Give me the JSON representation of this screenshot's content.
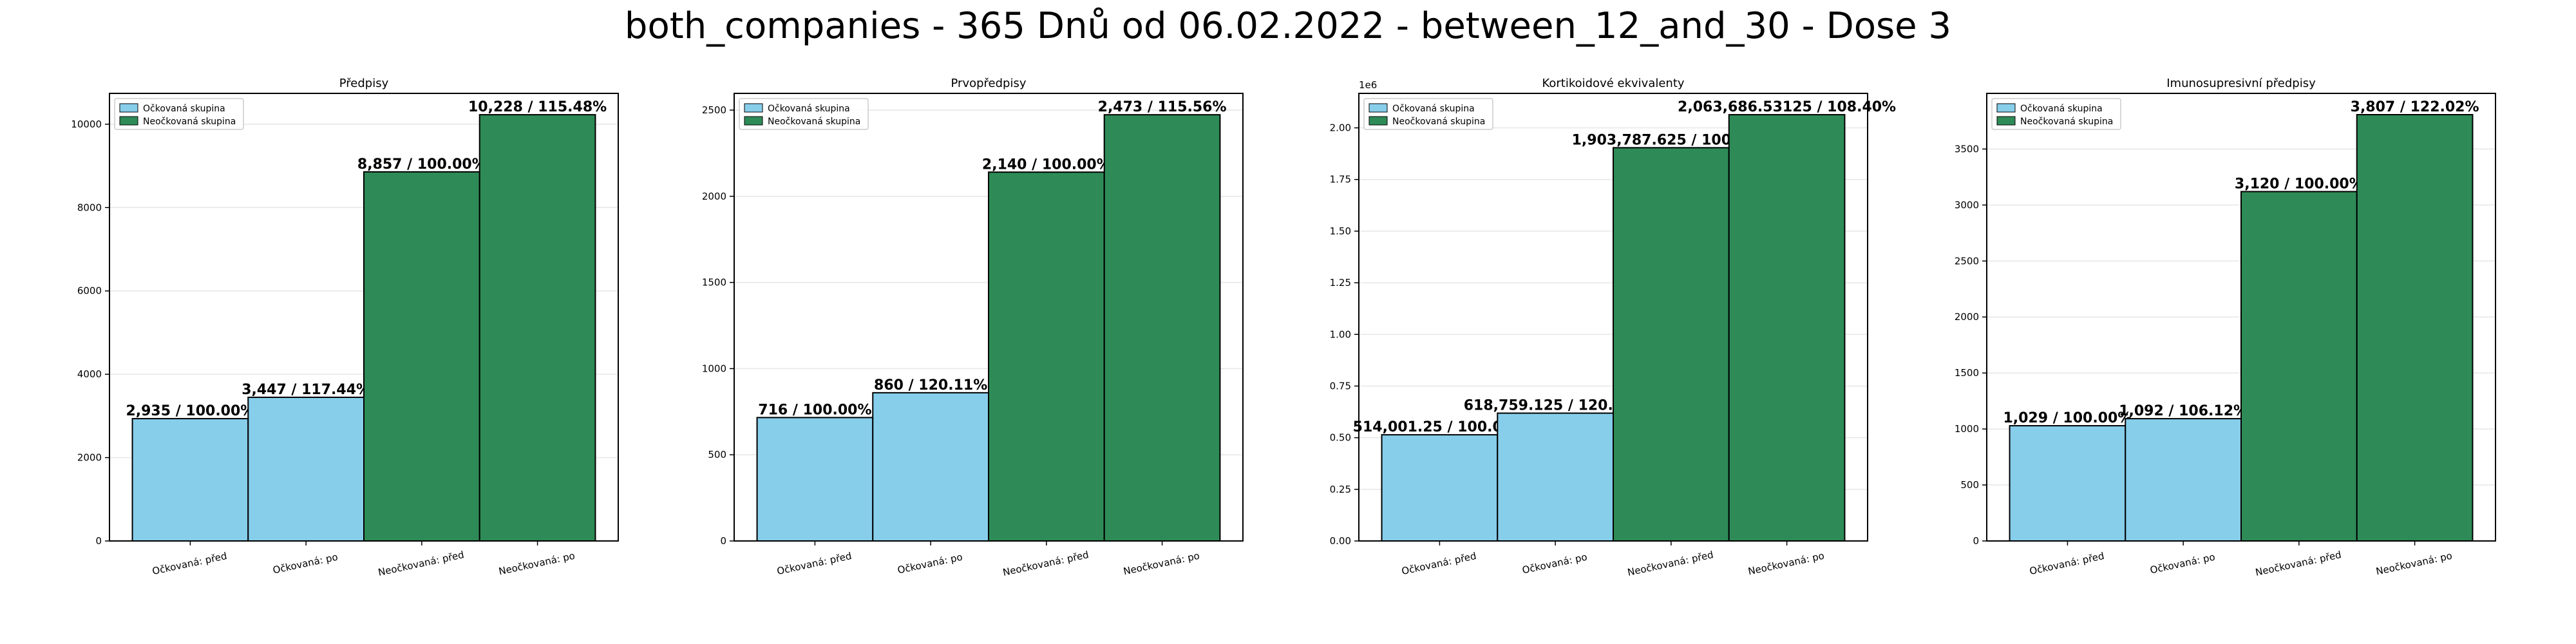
{
  "suptitle": "both_companies - 365 Dnů od 06.02.2022 - between_12_and_30 - Dose 3",
  "colors": {
    "vaccinated": "#87ceeb",
    "unvaccinated": "#2e8b57",
    "edge": "#000000",
    "grid": "#e6e6e6"
  },
  "chart_data": [
    {
      "type": "bar",
      "title": "Předpisy",
      "categories": [
        "Očkovaná: před",
        "Očkovaná: po",
        "Neočkovaná: před",
        "Neočkovaná: po"
      ],
      "values": [
        2935,
        3447,
        8857,
        10228
      ],
      "value_labels": [
        "2,935 / 100.00%",
        "3,447 / 117.44%",
        "8,857 / 100.00%",
        "10,228 / 115.48%"
      ],
      "bar_groups": [
        "Očkovaná skupina",
        "Očkovaná skupina",
        "Neočkovaná skupina",
        "Neočkovaná skupina"
      ],
      "legend": [
        "Očkovaná skupina",
        "Neočkovaná skupina"
      ],
      "legend_position": "top-left",
      "ylim": [
        0,
        10740
      ],
      "yticks": [
        0,
        2000,
        4000,
        6000,
        8000,
        10000
      ],
      "ytick_labels": [
        "0",
        "2000",
        "4000",
        "6000",
        "8000",
        "10000"
      ],
      "y_multiplier": "",
      "grid": "y"
    },
    {
      "type": "bar",
      "title": "Prvopředpisy",
      "categories": [
        "Očkovaná: před",
        "Očkovaná: po",
        "Neočkovaná: před",
        "Neočkovaná: po"
      ],
      "values": [
        716,
        860,
        2140,
        2473
      ],
      "value_labels": [
        "716 / 100.00%",
        "860 / 120.11%",
        "2,140 / 100.00%",
        "2,473 / 115.56%"
      ],
      "bar_groups": [
        "Očkovaná skupina",
        "Očkovaná skupina",
        "Neočkovaná skupina",
        "Neočkovaná skupina"
      ],
      "legend": [
        "Očkovaná skupina",
        "Neočkovaná skupina"
      ],
      "legend_position": "top-left",
      "ylim": [
        0,
        2597
      ],
      "yticks": [
        0,
        500,
        1000,
        1500,
        2000,
        2500
      ],
      "ytick_labels": [
        "0",
        "500",
        "1000",
        "1500",
        "2000",
        "2500"
      ],
      "y_multiplier": "",
      "grid": "y"
    },
    {
      "type": "bar",
      "title": "Kortikoidové ekvivalenty",
      "categories": [
        "Očkovaná: před",
        "Očkovaná: po",
        "Neočkovaná: před",
        "Neočkovaná: po"
      ],
      "values": [
        514001.25,
        618759.125,
        1903787.625,
        2063686.53125
      ],
      "value_labels": [
        "514,001.25 / 100.00%",
        "618,759.125 / 120.38%",
        "1,903,787.625 / 100.00%",
        "2,063,686.53125 / 108.40%"
      ],
      "bar_groups": [
        "Očkovaná skupina",
        "Očkovaná skupina",
        "Neočkovaná skupina",
        "Neočkovaná skupina"
      ],
      "legend": [
        "Očkovaná skupina",
        "Neočkovaná skupina"
      ],
      "legend_position": "top-left",
      "ylim": [
        0,
        2166871
      ],
      "yticks": [
        0,
        250000,
        500000,
        750000,
        1000000,
        1250000,
        1500000,
        1750000,
        2000000
      ],
      "ytick_labels": [
        "0.00",
        "0.25",
        "0.50",
        "0.75",
        "1.00",
        "1.25",
        "1.50",
        "1.75",
        "2.00"
      ],
      "y_multiplier": "1e6",
      "grid": "y"
    },
    {
      "type": "bar",
      "title": "Imunosupresivní předpisy",
      "categories": [
        "Očkovaná: před",
        "Očkovaná: po",
        "Neočkovaná: před",
        "Neočkovaná: po"
      ],
      "values": [
        1029,
        1092,
        3120,
        3807
      ],
      "value_labels": [
        "1,029 / 100.00%",
        "1,092 / 106.12%",
        "3,120 / 100.00%",
        "3,807 / 122.02%"
      ],
      "bar_groups": [
        "Očkovaná skupina",
        "Očkovaná skupina",
        "Neočkovaná skupina",
        "Neočkovaná skupina"
      ],
      "legend": [
        "Očkovaná skupina",
        "Neočkovaná skupina"
      ],
      "legend_position": "top-left",
      "ylim": [
        0,
        3997
      ],
      "yticks": [
        0,
        500,
        1000,
        1500,
        2000,
        2500,
        3000,
        3500
      ],
      "ytick_labels": [
        "0",
        "500",
        "1000",
        "1500",
        "2000",
        "2500",
        "3000",
        "3500"
      ],
      "y_multiplier": "",
      "grid": "y"
    }
  ]
}
